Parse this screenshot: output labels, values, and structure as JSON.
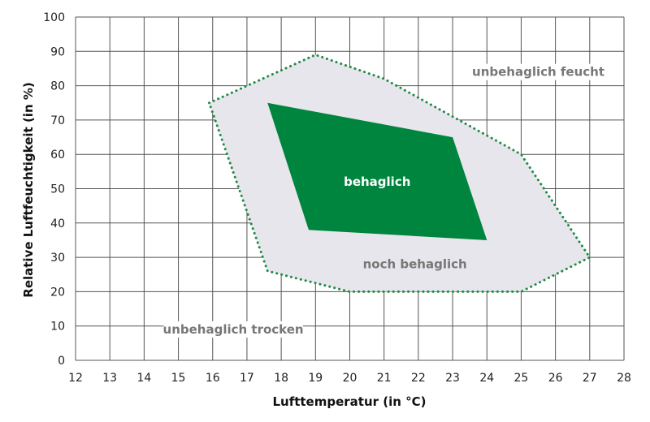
{
  "chart_data": {
    "type": "area",
    "xlabel": "Lufttemperatur (in °C)",
    "ylabel": "Relative Luftfeuchtigkeit (in %)",
    "xlim": [
      12,
      28
    ],
    "ylim": [
      0,
      100
    ],
    "x_ticks": [
      12,
      13,
      14,
      15,
      16,
      17,
      18,
      19,
      20,
      21,
      22,
      23,
      24,
      25,
      26,
      27,
      28
    ],
    "y_ticks": [
      0,
      10,
      20,
      30,
      40,
      50,
      60,
      70,
      80,
      90,
      100
    ],
    "grid": true,
    "regions": [
      {
        "name": "noch behaglich",
        "fill": "#e6e6ec",
        "stroke": "#1e8a44",
        "stroke_style": "dotted",
        "points": [
          [
            15.9,
            75
          ],
          [
            19,
            89
          ],
          [
            21,
            82
          ],
          [
            25,
            60
          ],
          [
            27,
            30
          ],
          [
            25,
            20
          ],
          [
            20,
            20
          ],
          [
            17.6,
            26
          ]
        ]
      },
      {
        "name": "behaglich",
        "fill": "#00853e",
        "points": [
          [
            17.6,
            75
          ],
          [
            23,
            65
          ],
          [
            24,
            35
          ],
          [
            18.8,
            38
          ]
        ]
      }
    ],
    "annotations": [
      {
        "text": "behaglich",
        "x": 20.8,
        "y": 52,
        "color": "#ffffff"
      },
      {
        "text": "noch behaglich",
        "x": 21.9,
        "y": 28,
        "color": "#777777"
      },
      {
        "text": "unbehaglich feucht",
        "x": 25.5,
        "y": 84,
        "color": "#777777"
      },
      {
        "text": "unbehaglich trocken",
        "x": 16.6,
        "y": 9,
        "color": "#777777"
      }
    ]
  },
  "colors": {
    "grid": "#555555",
    "comfort": "#00853e",
    "tolerable_fill": "#e6e6ec",
    "tolerable_border": "#1e8a44",
    "label_gray": "#777777"
  }
}
